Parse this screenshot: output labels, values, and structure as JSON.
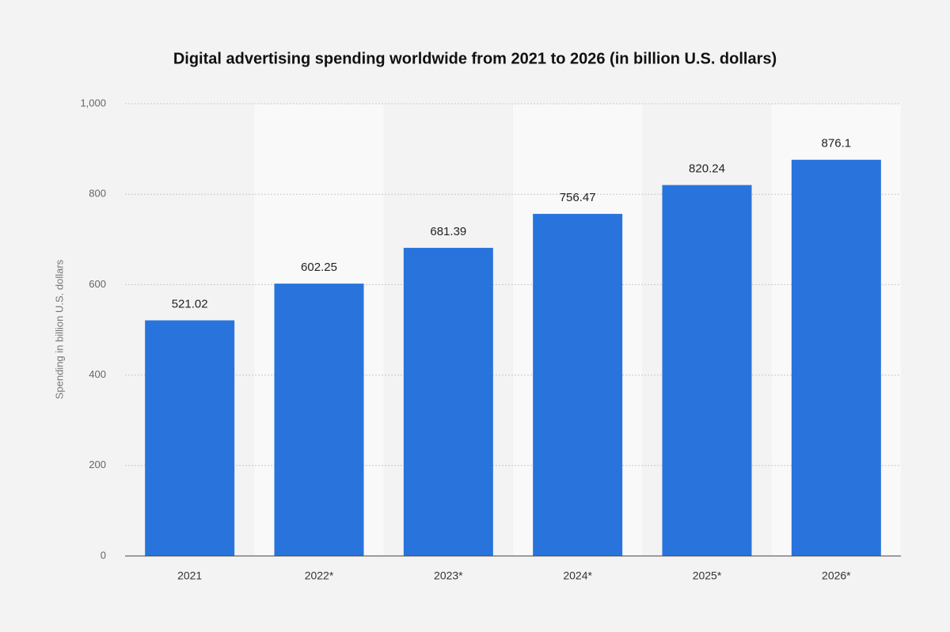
{
  "chart_data": {
    "type": "bar",
    "title": "Digital advertising spending worldwide from 2021 to 2026 (in billion U.S. dollars)",
    "y_label": "Spending in billion U.S. dollars",
    "categories": [
      "2021",
      "2022*",
      "2023*",
      "2024*",
      "2025*",
      "2026*"
    ],
    "values": [
      521.02,
      602.25,
      681.39,
      756.47,
      820.24,
      876.1
    ],
    "color": "#2874dc",
    "ylim": [
      0,
      1000
    ],
    "yticks": [
      0,
      200,
      400,
      600,
      800,
      {
        "value": 1000,
        "label": "1,000"
      }
    ],
    "grid": true
  }
}
